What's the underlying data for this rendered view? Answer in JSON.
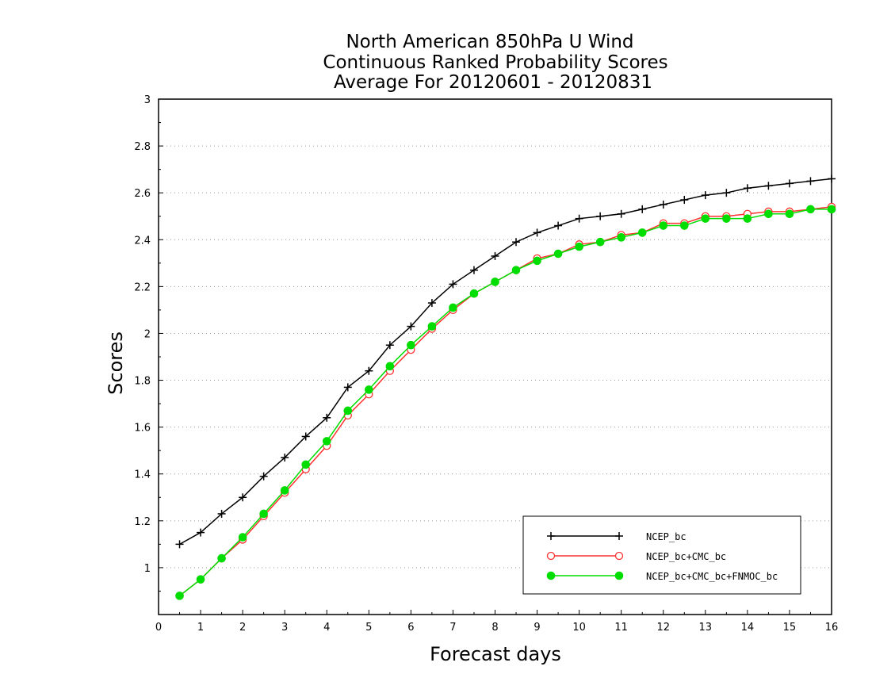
{
  "chart_data": {
    "type": "line",
    "title_lines": [
      "North American 850hPa U Wind",
      "Continuous Ranked Probability Scores",
      "Average For 20120601 - 20120831"
    ],
    "xlabel": "Forecast days",
    "ylabel": "Scores",
    "xlim": [
      0,
      16
    ],
    "ylim": [
      0.8,
      3
    ],
    "xticks": [
      0,
      1,
      2,
      3,
      4,
      5,
      6,
      7,
      8,
      9,
      10,
      11,
      12,
      13,
      14,
      15,
      16
    ],
    "yticks": [
      1,
      1.2,
      1.4,
      1.6,
      1.8,
      2,
      2.2,
      2.4,
      2.6,
      2.8,
      3
    ],
    "grid": "horizontal dotted",
    "legend_position": "bottom-right",
    "x": [
      0.5,
      1,
      1.5,
      2,
      2.5,
      3,
      3.5,
      4,
      4.5,
      5,
      5.5,
      6,
      6.5,
      7,
      7.5,
      8,
      8.5,
      9,
      9.5,
      10,
      10.5,
      11,
      11.5,
      12,
      12.5,
      13,
      13.5,
      14,
      14.5,
      15,
      15.5,
      16
    ],
    "series": [
      {
        "name": "NCEP_bc",
        "color": "#000000",
        "marker": "plus",
        "values": [
          1.1,
          1.15,
          1.23,
          1.3,
          1.39,
          1.47,
          1.56,
          1.64,
          1.77,
          1.84,
          1.95,
          2.03,
          2.13,
          2.21,
          2.27,
          2.33,
          2.39,
          2.43,
          2.46,
          2.49,
          2.5,
          2.51,
          2.53,
          2.55,
          2.57,
          2.59,
          2.6,
          2.62,
          2.63,
          2.64,
          2.65,
          2.66
        ]
      },
      {
        "name": "NCEP_bc+CMC_bc",
        "color": "#ff3030",
        "marker": "open-circle",
        "values": [
          0.88,
          0.95,
          1.04,
          1.12,
          1.22,
          1.32,
          1.42,
          1.52,
          1.65,
          1.74,
          1.84,
          1.93,
          2.02,
          2.1,
          2.17,
          2.22,
          2.27,
          2.32,
          2.34,
          2.38,
          2.39,
          2.42,
          2.43,
          2.47,
          2.47,
          2.5,
          2.5,
          2.51,
          2.52,
          2.52,
          2.53,
          2.54
        ]
      },
      {
        "name": "NCEP_bc+CMC_bc+FNMOC_bc",
        "color": "#00dd00",
        "marker": "filled-circle",
        "values": [
          0.88,
          0.95,
          1.04,
          1.13,
          1.23,
          1.33,
          1.44,
          1.54,
          1.67,
          1.76,
          1.86,
          1.95,
          2.03,
          2.11,
          2.17,
          2.22,
          2.27,
          2.31,
          2.34,
          2.37,
          2.39,
          2.41,
          2.43,
          2.46,
          2.46,
          2.49,
          2.49,
          2.49,
          2.51,
          2.51,
          2.53,
          2.53
        ]
      }
    ]
  }
}
